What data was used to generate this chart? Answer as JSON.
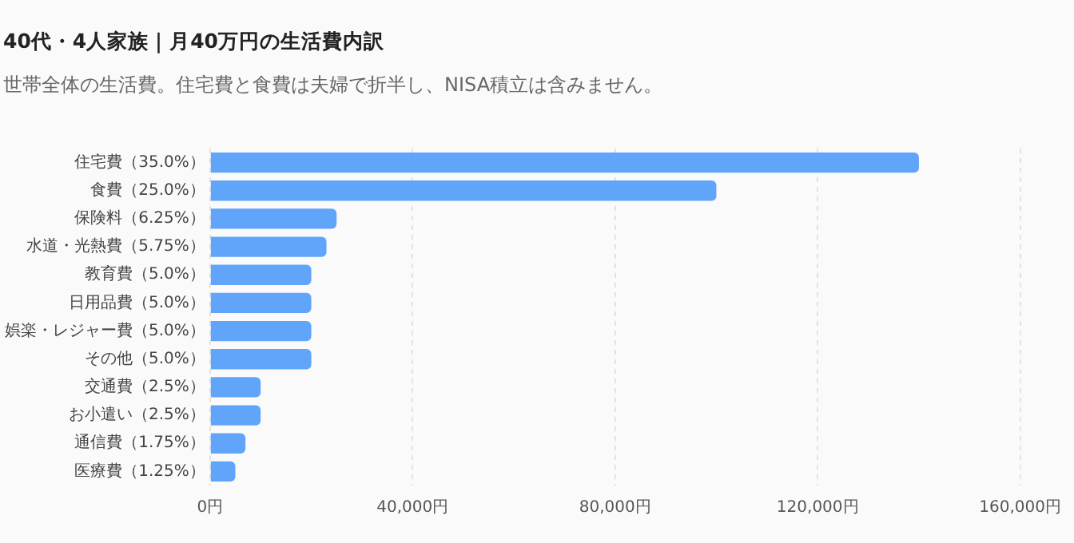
{
  "chart_data": {
    "type": "bar",
    "orientation": "horizontal",
    "title": "40代・4人家族｜月40万円の生活費内訳",
    "subtitle": "世帯全体の生活費。住宅費と食費は夫婦で折半し、NISA積立は含みません。",
    "categories": [
      "住宅費（35.0%）",
      "食費（25.0%）",
      "保険料（6.25%）",
      "水道・光熱費（5.75%）",
      "教育費（5.0%）",
      "日用品費（5.0%）",
      "娯楽・レジャー費（5.0%）",
      "その他（5.0%）",
      "交通費（2.5%）",
      "お小遣い（2.5%）",
      "通信費（1.75%）",
      "医療費（1.25%）"
    ],
    "values": [
      140000,
      100000,
      25000,
      23000,
      20000,
      20000,
      20000,
      20000,
      10000,
      10000,
      7000,
      5000
    ],
    "color": "#60a5fa",
    "xlim": [
      0,
      160000
    ],
    "xticks": [
      {
        "value": 0,
        "label": "0円"
      },
      {
        "value": 40000,
        "label": "40,000円"
      },
      {
        "value": 80000,
        "label": "80,000円"
      },
      {
        "value": 120000,
        "label": "120,000円"
      },
      {
        "value": 160000,
        "label": "160,000円"
      }
    ],
    "grid": "x"
  }
}
